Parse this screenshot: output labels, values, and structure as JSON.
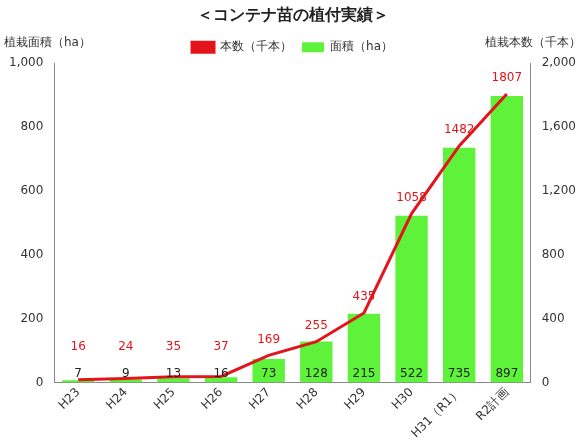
{
  "chart_data": {
    "type": "bar",
    "title": "＜コンテナ苗の植付実績＞",
    "y_label": "植栽面積（ha）",
    "y2_label": "植栽本数（千本）",
    "categories": [
      "H23",
      "H24",
      "H25",
      "H26",
      "H27",
      "H28",
      "H29",
      "H30",
      "H31（R1）",
      "R2計画"
    ],
    "series": [
      {
        "name": "面積（ha）",
        "type": "bar",
        "color": "#5ef23a",
        "axis": "y",
        "values": [
          7,
          9,
          13,
          16,
          73,
          128,
          215,
          522,
          735,
          897
        ]
      },
      {
        "name": "本数（千本）",
        "type": "line",
        "color": "#e3141b",
        "axis": "y2",
        "marker": "none",
        "line_style": "solid",
        "values": [
          16,
          24,
          35,
          37,
          169,
          255,
          435,
          1058,
          1482,
          1807
        ]
      }
    ],
    "ylim": [
      0,
      1000
    ],
    "yticks": [
      0,
      200,
      400,
      600,
      800,
      1000
    ],
    "y2lim": [
      0,
      2000
    ],
    "y2ticks": [
      0,
      400,
      800,
      1200,
      1600,
      2000
    ],
    "grid": false,
    "legend": "top",
    "data_labels": true
  }
}
